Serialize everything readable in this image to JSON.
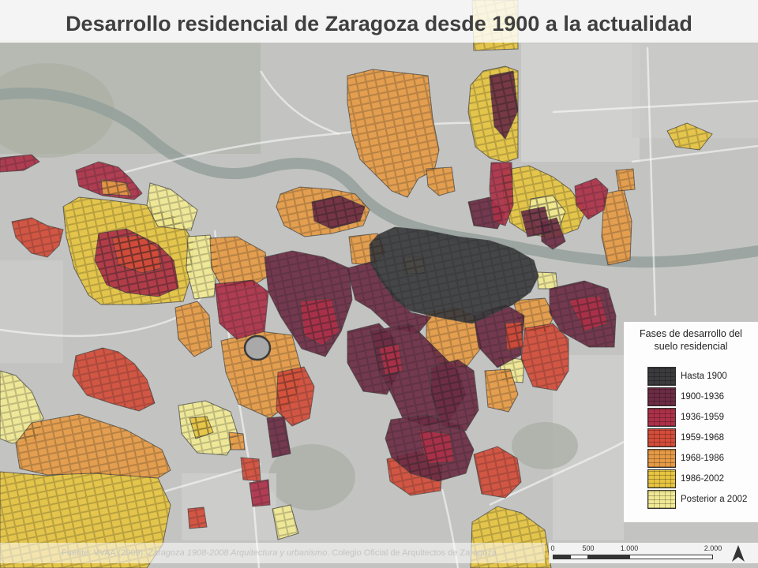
{
  "title": "Desarrollo residencial de Zaragoza desde 1900 a la actualidad",
  "legend": {
    "title_line1": "Fases de desarrollo del",
    "title_line2": "suelo residencial",
    "items": [
      {
        "label": "Hasta 1900",
        "color": "#3b3b3d"
      },
      {
        "label": "1900-1936",
        "color": "#6d2c44"
      },
      {
        "label": "1936-1959",
        "color": "#ad3149"
      },
      {
        "label": "1959-1968",
        "color": "#d44c3a"
      },
      {
        "label": "1968-1986",
        "color": "#e69a45"
      },
      {
        "label": "1986-2002",
        "color": "#e7c441"
      },
      {
        "label": "Posterior a 2002",
        "color": "#f1e994"
      }
    ]
  },
  "source": {
    "prefix": "Fuente: VVAA (2009): ",
    "title": "Zaragoza 1908-2008 Arquitectura y urbanismo",
    "suffix": ". Colegio Oficial de Arquitectos de Zaragoza"
  },
  "scale_bar": {
    "labels": [
      "0",
      "500",
      "1.000",
      "2.000"
    ]
  },
  "icons": {
    "north": "north-arrow-icon"
  }
}
